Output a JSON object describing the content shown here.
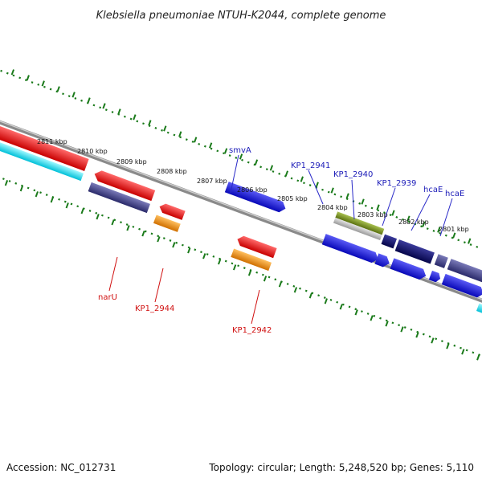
{
  "title": "Klebsiella pneumoniae NTUH-K2044, complete genome",
  "footer": {
    "accession": "Accession: NC_012731",
    "summary": "Topology: circular; Length: 5,248,520 bp; Genes: 5,110"
  },
  "ruler_labels": [
    "2811 kbp",
    "2810 kbp",
    "2809 kbp",
    "2808 kbp",
    "2807 kbp",
    "2806 kbp",
    "2805 kbp",
    "2804 kbp",
    "2803 kbp",
    "2802 kbp",
    "2801 kbp"
  ],
  "forward_gene_labels": [
    "smvA",
    "KP1_2941",
    "KP1_2940",
    "KP1_2939",
    "hcaE",
    "hcaE"
  ],
  "reverse_gene_labels": [
    "narU",
    "KP1_2944",
    "KP1_2942"
  ],
  "colors": {
    "forward_cds": "#1010d8",
    "forward_dark": "#0a0a6a",
    "reverse_cds": "#e81010",
    "reverse_orange": "#f08a00",
    "cyan": "#00d8e8",
    "slate": "#3a3a80",
    "olive": "#6f8a20",
    "ruler_green": "#1a7a1a",
    "backbone": "#888888",
    "forward_label": "#1b1bb8",
    "reverse_label": "#d01010"
  }
}
